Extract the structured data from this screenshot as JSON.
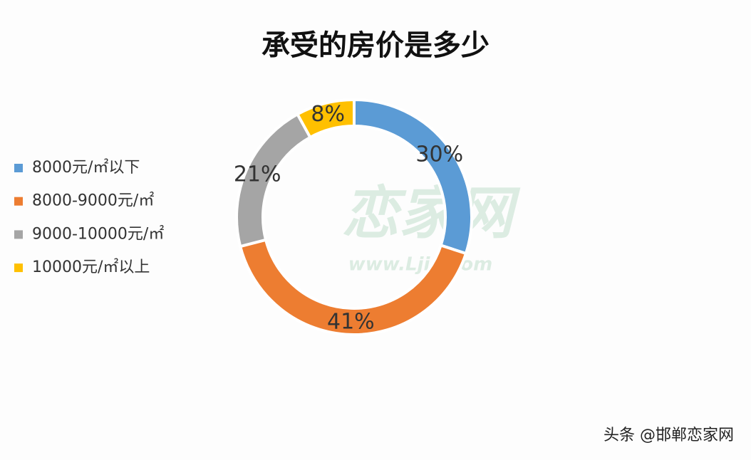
{
  "chart_data": {
    "type": "donut",
    "title": "承受的房价是多少",
    "categories": [
      "8000元/㎡以下",
      "8000-9000元/㎡",
      "9000-10000元/㎡",
      "10000元/㎡以上"
    ],
    "values": [
      30,
      41,
      21,
      8
    ],
    "value_labels": [
      "30%",
      "41%",
      "21%",
      "8%"
    ],
    "colors": [
      "#5b9bd5",
      "#ed7d31",
      "#a5a5a5",
      "#ffc000"
    ],
    "legend": "left"
  },
  "watermark": [
    "恋家网",
    "www.Ljia.com"
  ],
  "footer": "头条 @邯郸恋家网"
}
